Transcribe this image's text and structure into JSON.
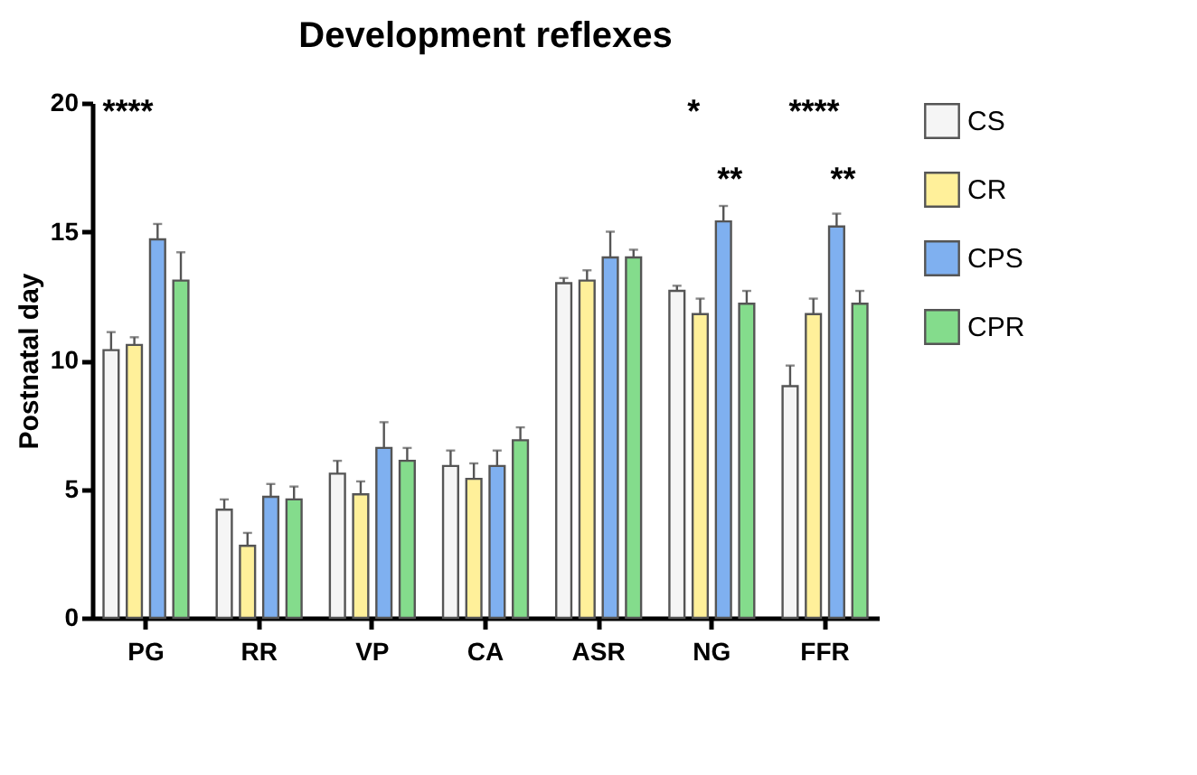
{
  "chart_data": {
    "type": "bar",
    "title": "Development reflexes",
    "ylabel": "Postnatal day",
    "categories": [
      "PG",
      "RR",
      "VP",
      "CA",
      "ASR",
      "NG",
      "FFR"
    ],
    "series": [
      {
        "name": "CS",
        "color": "#f5f5f5",
        "values": [
          10.4,
          4.2,
          5.6,
          5.9,
          13.0,
          12.7,
          9.0
        ],
        "errors": [
          [
            10.4,
            11.1
          ],
          [
            4.2,
            4.6
          ],
          [
            5.6,
            6.1
          ],
          [
            5.9,
            6.5
          ],
          [
            13.0,
            13.2
          ],
          [
            12.7,
            12.9
          ],
          [
            9.0,
            9.8
          ]
        ]
      },
      {
        "name": "CR",
        "color": "#fff09a",
        "values": [
          10.6,
          2.8,
          4.8,
          5.4,
          13.1,
          11.8,
          11.8
        ],
        "errors": [
          [
            10.6,
            10.9
          ],
          [
            2.8,
            3.3
          ],
          [
            4.8,
            5.3
          ],
          [
            5.4,
            6.0
          ],
          [
            13.1,
            13.5
          ],
          [
            11.8,
            12.4
          ],
          [
            11.8,
            12.4
          ]
        ]
      },
      {
        "name": "CPS",
        "color": "#7fb0f0",
        "values": [
          14.7,
          4.7,
          6.6,
          5.9,
          14.0,
          15.4,
          15.2
        ],
        "errors": [
          [
            14.7,
            15.3
          ],
          [
            4.7,
            5.2
          ],
          [
            6.6,
            7.6
          ],
          [
            5.9,
            6.5
          ],
          [
            14.0,
            15.0
          ],
          [
            15.4,
            16.0
          ],
          [
            15.2,
            15.7
          ]
        ]
      },
      {
        "name": "CPR",
        "color": "#84dc8c",
        "values": [
          13.1,
          4.6,
          6.1,
          6.9,
          14.0,
          12.2,
          12.2
        ],
        "errors": [
          [
            13.1,
            14.2
          ],
          [
            4.6,
            5.1
          ],
          [
            6.1,
            6.6
          ],
          [
            6.9,
            7.4
          ],
          [
            14.0,
            14.3
          ],
          [
            12.2,
            12.7
          ],
          [
            12.2,
            12.7
          ]
        ]
      }
    ],
    "ylim": [
      0,
      20
    ],
    "yticks": [
      0,
      5,
      10,
      15,
      20
    ],
    "grid": false,
    "legend": "top right",
    "annotations": [
      "****",
      "*",
      "**",
      "****",
      "**"
    ]
  }
}
